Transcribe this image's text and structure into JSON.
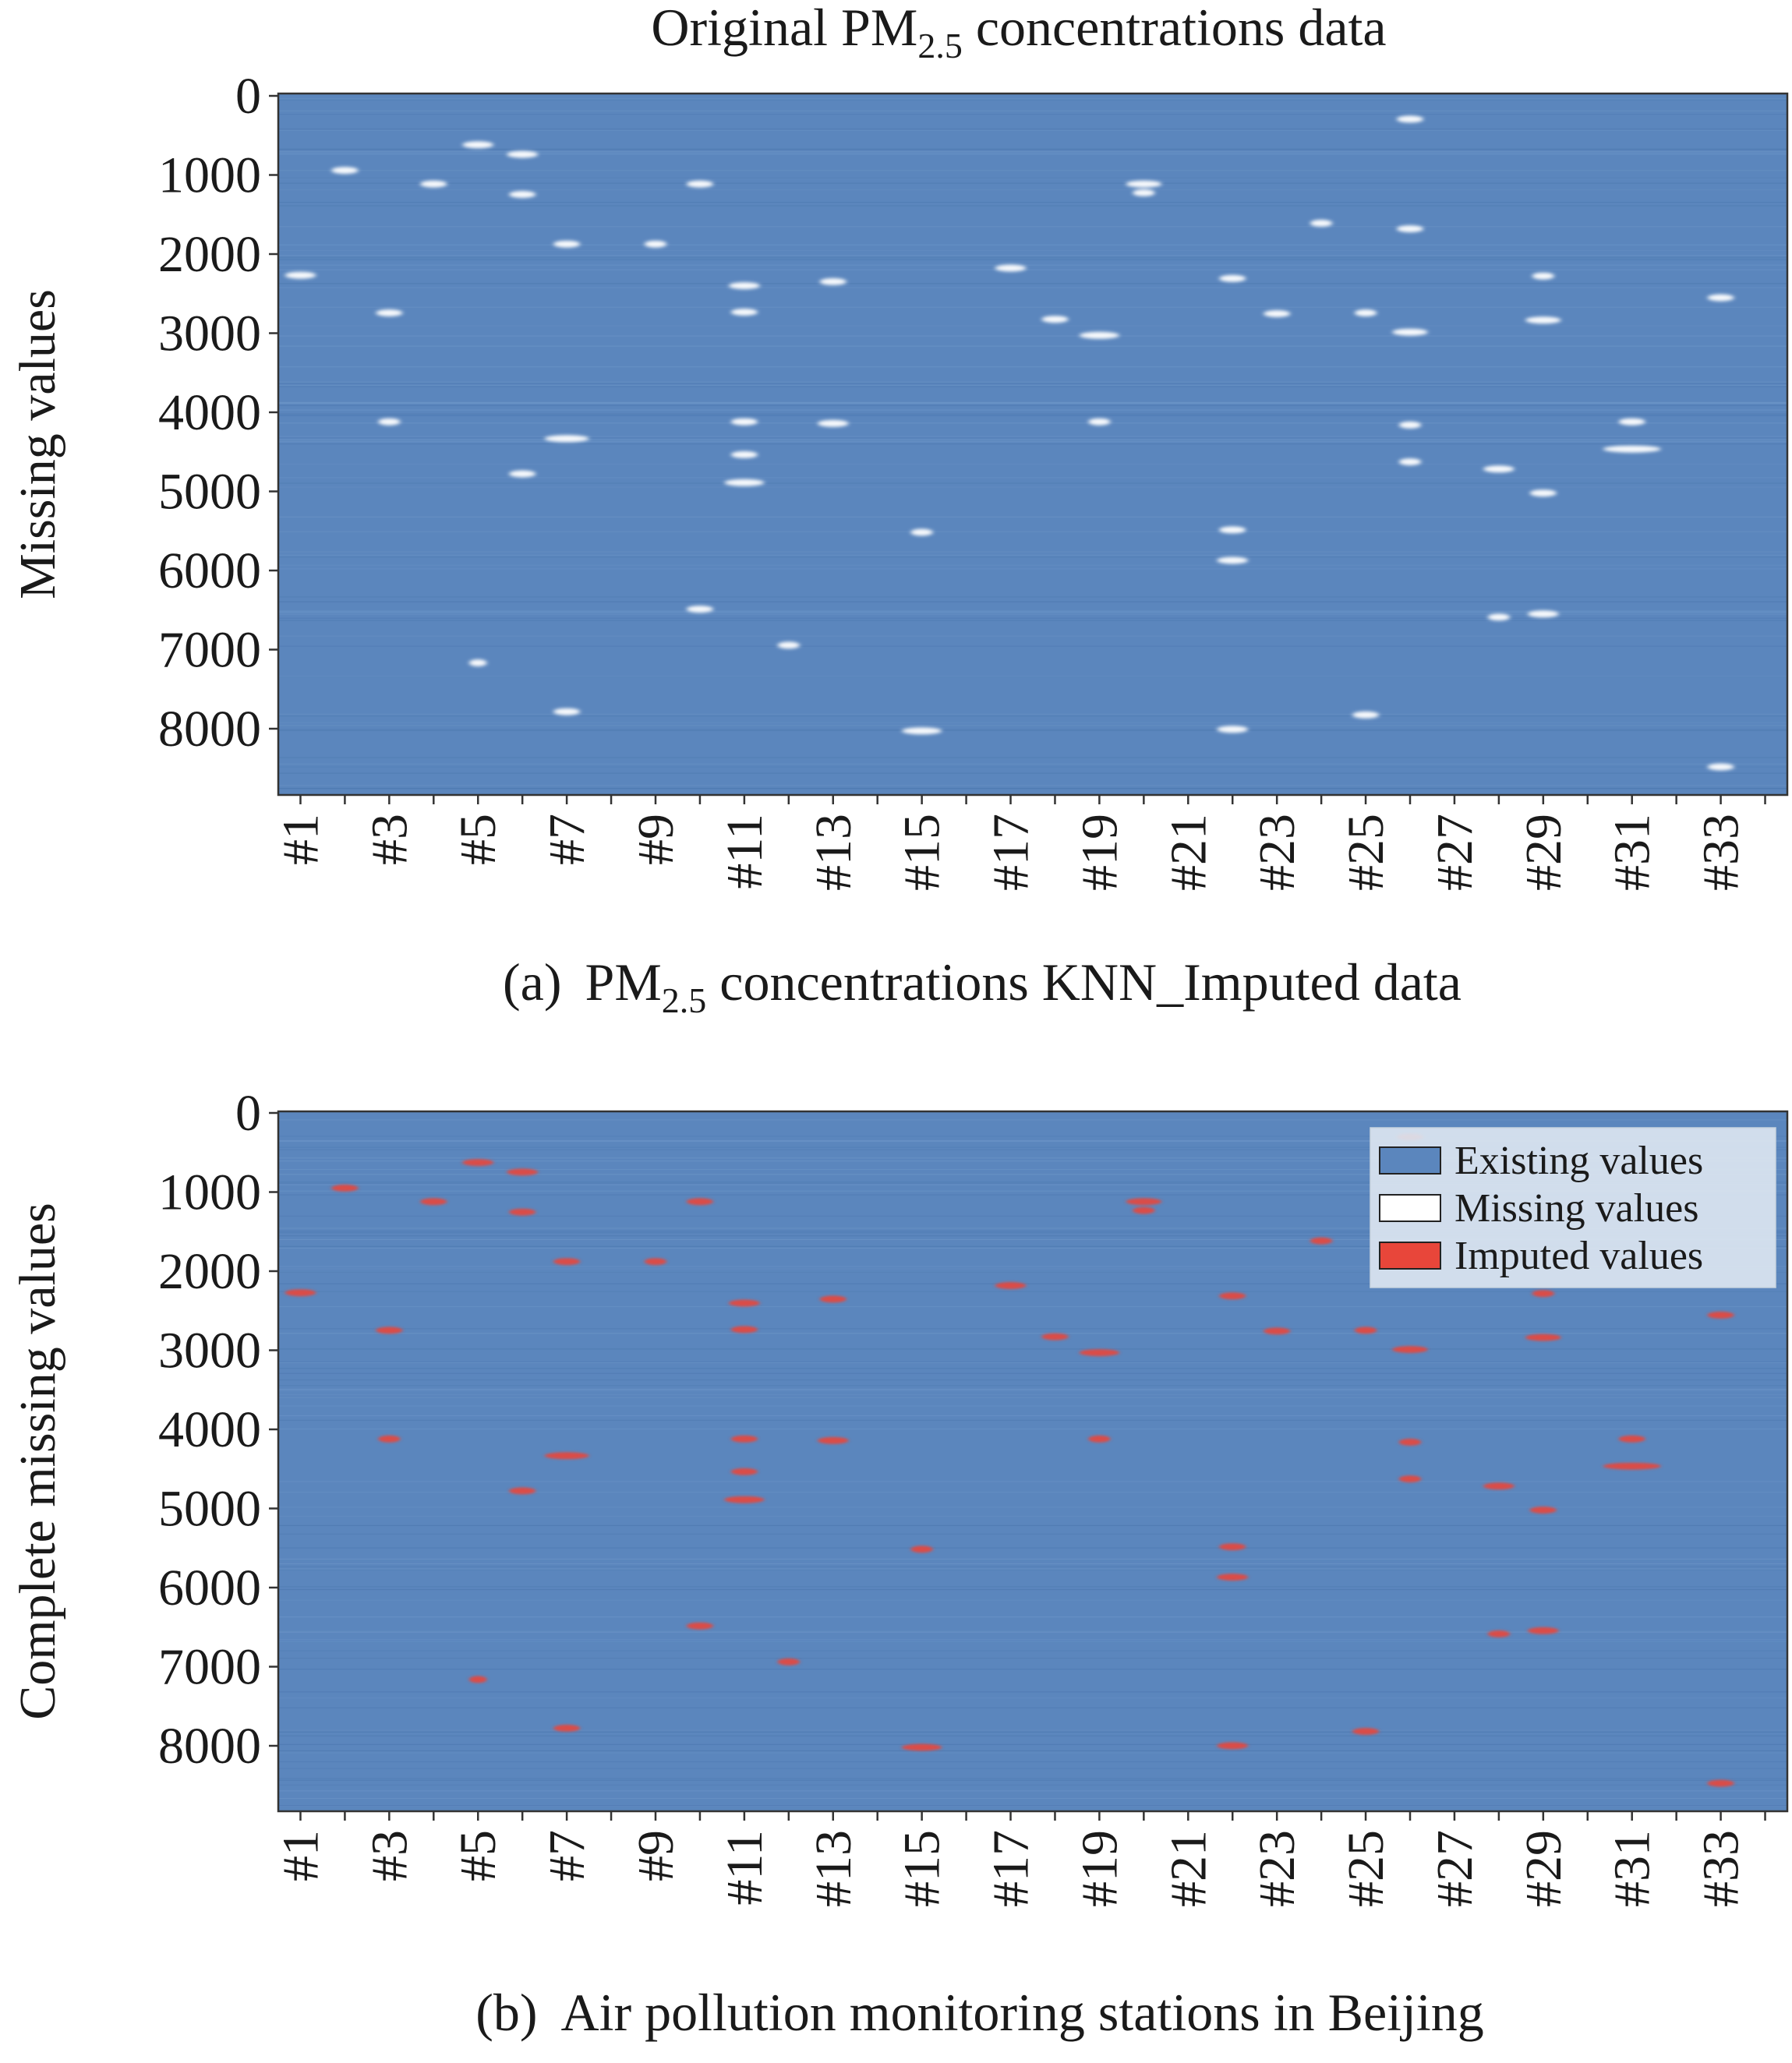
{
  "chart_data": [
    {
      "type": "heatmap",
      "title": "Original PM",
      "title_subscript": "2.5",
      "title_rest": " concentrations data",
      "ylabel": "Missing values",
      "caption_label": "(a)",
      "caption": "PM",
      "caption_subscript": "2.5",
      "caption_rest": " concentrations KNN_Imputed data",
      "yticks": [
        "0",
        "1000",
        "2000",
        "3000",
        "4000",
        "5000",
        "6000",
        "7000",
        "8000"
      ],
      "ylim": [
        0,
        8760
      ],
      "xticks": [
        "#1",
        "#3",
        "#5",
        "#7",
        "#9",
        "#11",
        "#13",
        "#15",
        "#17",
        "#19",
        "#21",
        "#23",
        "#25",
        "#27",
        "#29",
        "#31",
        "#33"
      ],
      "stations": 34,
      "colors": {
        "existing": "#5b86bd",
        "missing": "#ffffff"
      },
      "segments": [
        {
          "station": 1,
          "row": 2270,
          "len": 0.7
        },
        {
          "station": 2,
          "row": 960,
          "len": 0.6
        },
        {
          "station": 3,
          "row": 2740,
          "len": 0.6
        },
        {
          "station": 3,
          "row": 4100,
          "len": 0.5
        },
        {
          "station": 4,
          "row": 1130,
          "len": 0.6
        },
        {
          "station": 5,
          "row": 640,
          "len": 0.7
        },
        {
          "station": 5,
          "row": 7110,
          "len": 0.4
        },
        {
          "station": 6,
          "row": 760,
          "len": 0.7
        },
        {
          "station": 6,
          "row": 1260,
          "len": 0.6
        },
        {
          "station": 6,
          "row": 4750,
          "len": 0.6
        },
        {
          "station": 7,
          "row": 1880,
          "len": 0.6
        },
        {
          "station": 7,
          "row": 4310,
          "len": 1.0
        },
        {
          "station": 7,
          "row": 7720,
          "len": 0.6
        },
        {
          "station": 9,
          "row": 1880,
          "len": 0.5
        },
        {
          "station": 10,
          "row": 1130,
          "len": 0.6
        },
        {
          "station": 10,
          "row": 6440,
          "len": 0.6
        },
        {
          "station": 11,
          "row": 2400,
          "len": 0.7
        },
        {
          "station": 11,
          "row": 2730,
          "len": 0.6
        },
        {
          "station": 11,
          "row": 4100,
          "len": 0.6
        },
        {
          "station": 11,
          "row": 4510,
          "len": 0.6
        },
        {
          "station": 11,
          "row": 4860,
          "len": 0.9
        },
        {
          "station": 12,
          "row": 6890,
          "len": 0.5
        },
        {
          "station": 13,
          "row": 2350,
          "len": 0.6
        },
        {
          "station": 13,
          "row": 4120,
          "len": 0.7
        },
        {
          "station": 15,
          "row": 5480,
          "len": 0.5
        },
        {
          "station": 15,
          "row": 7960,
          "len": 0.9
        },
        {
          "station": 17,
          "row": 2180,
          "len": 0.7
        },
        {
          "station": 18,
          "row": 2820,
          "len": 0.6
        },
        {
          "station": 19,
          "row": 3020,
          "len": 0.9
        },
        {
          "station": 19,
          "row": 4100,
          "len": 0.5
        },
        {
          "station": 20,
          "row": 1130,
          "len": 0.8
        },
        {
          "station": 20,
          "row": 1240,
          "len": 0.5
        },
        {
          "station": 22,
          "row": 2310,
          "len": 0.6
        },
        {
          "station": 22,
          "row": 5450,
          "len": 0.6
        },
        {
          "station": 22,
          "row": 5830,
          "len": 0.7
        },
        {
          "station": 22,
          "row": 7940,
          "len": 0.7
        },
        {
          "station": 23,
          "row": 2750,
          "len": 0.6
        },
        {
          "station": 24,
          "row": 1620,
          "len": 0.5
        },
        {
          "station": 25,
          "row": 2740,
          "len": 0.5
        },
        {
          "station": 25,
          "row": 7760,
          "len": 0.6
        },
        {
          "station": 26,
          "row": 320,
          "len": 0.6
        },
        {
          "station": 26,
          "row": 1690,
          "len": 0.6
        },
        {
          "station": 26,
          "row": 2980,
          "len": 0.8
        },
        {
          "station": 26,
          "row": 4140,
          "len": 0.5
        },
        {
          "station": 26,
          "row": 4600,
          "len": 0.5
        },
        {
          "station": 28,
          "row": 4690,
          "len": 0.7
        },
        {
          "station": 28,
          "row": 6540,
          "len": 0.5
        },
        {
          "station": 29,
          "row": 2280,
          "len": 0.5
        },
        {
          "station": 29,
          "row": 2830,
          "len": 0.8
        },
        {
          "station": 29,
          "row": 4990,
          "len": 0.6
        },
        {
          "station": 29,
          "row": 6500,
          "len": 0.7
        },
        {
          "station": 31,
          "row": 4100,
          "len": 0.6
        },
        {
          "station": 31,
          "row": 4440,
          "len": 1.3
        },
        {
          "station": 33,
          "row": 2550,
          "len": 0.6
        },
        {
          "station": 33,
          "row": 8410,
          "len": 0.6
        }
      ]
    },
    {
      "type": "heatmap",
      "ylabel": "Complete missing values",
      "caption_label": "(b)",
      "caption": "Air pollution monitoring stations in Beijing",
      "yticks": [
        "0",
        "1000",
        "2000",
        "3000",
        "4000",
        "5000",
        "6000",
        "7000",
        "8000"
      ],
      "ylim": [
        0,
        8760
      ],
      "xticks": [
        "#1",
        "#3",
        "#5",
        "#7",
        "#9",
        "#11",
        "#13",
        "#15",
        "#17",
        "#19",
        "#21",
        "#23",
        "#25",
        "#27",
        "#29",
        "#31",
        "#33"
      ],
      "stations": 34,
      "colors": {
        "existing": "#5b86bd",
        "missing": "#ffffff",
        "imputed": "#e8463a"
      },
      "legend": {
        "position": "top-right",
        "entries": [
          {
            "label": "Existing values",
            "color": "#5b86bd"
          },
          {
            "label": "Missing values",
            "color": "#ffffff"
          },
          {
            "label": "Imputed values",
            "color": "#e8463a"
          }
        ]
      },
      "segments_source": "same as panel (a), shown as imputed"
    }
  ]
}
